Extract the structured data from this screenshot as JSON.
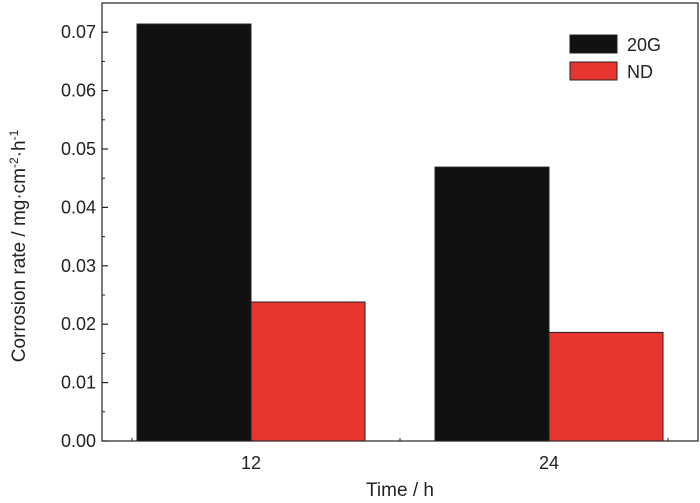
{
  "chart_data": {
    "type": "bar",
    "categories": [
      "12",
      "24"
    ],
    "series": [
      {
        "name": "20G",
        "values": [
          0.0714,
          0.0469
        ],
        "color": "#111111"
      },
      {
        "name": "ND",
        "values": [
          0.0238,
          0.0186
        ],
        "color": "#e83530"
      }
    ],
    "xlabel": "Time / h",
    "ylabel": {
      "text1": "Corrosion rate / mg·cm",
      "sup1": "-2",
      "text2": "·h",
      "sup2": "-1"
    },
    "ylim": [
      0,
      0.075
    ],
    "yticks": [
      "0.00",
      "0.01",
      "0.02",
      "0.03",
      "0.04",
      "0.05",
      "0.06",
      "0.07"
    ],
    "legend_position": "top-right",
    "grid": false
  }
}
